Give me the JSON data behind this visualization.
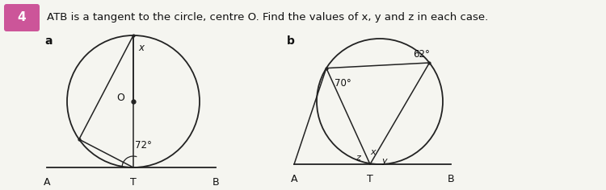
{
  "title": "ATB is a tangent to the circle, centre O. Find the values of x, y and z in each case.",
  "number_label": "4",
  "number_bg": "#cc5599",
  "sub_a": "a",
  "sub_b": "b",
  "fig_width": 7.5,
  "fig_height": 2.36,
  "bg_color": "#f5f5f0",
  "angle_72": "72°",
  "angle_70": "70°",
  "angle_62": "62°",
  "label_x": "x",
  "label_y": "y",
  "label_z": "z",
  "label_O": "O",
  "line_color": "#222222"
}
